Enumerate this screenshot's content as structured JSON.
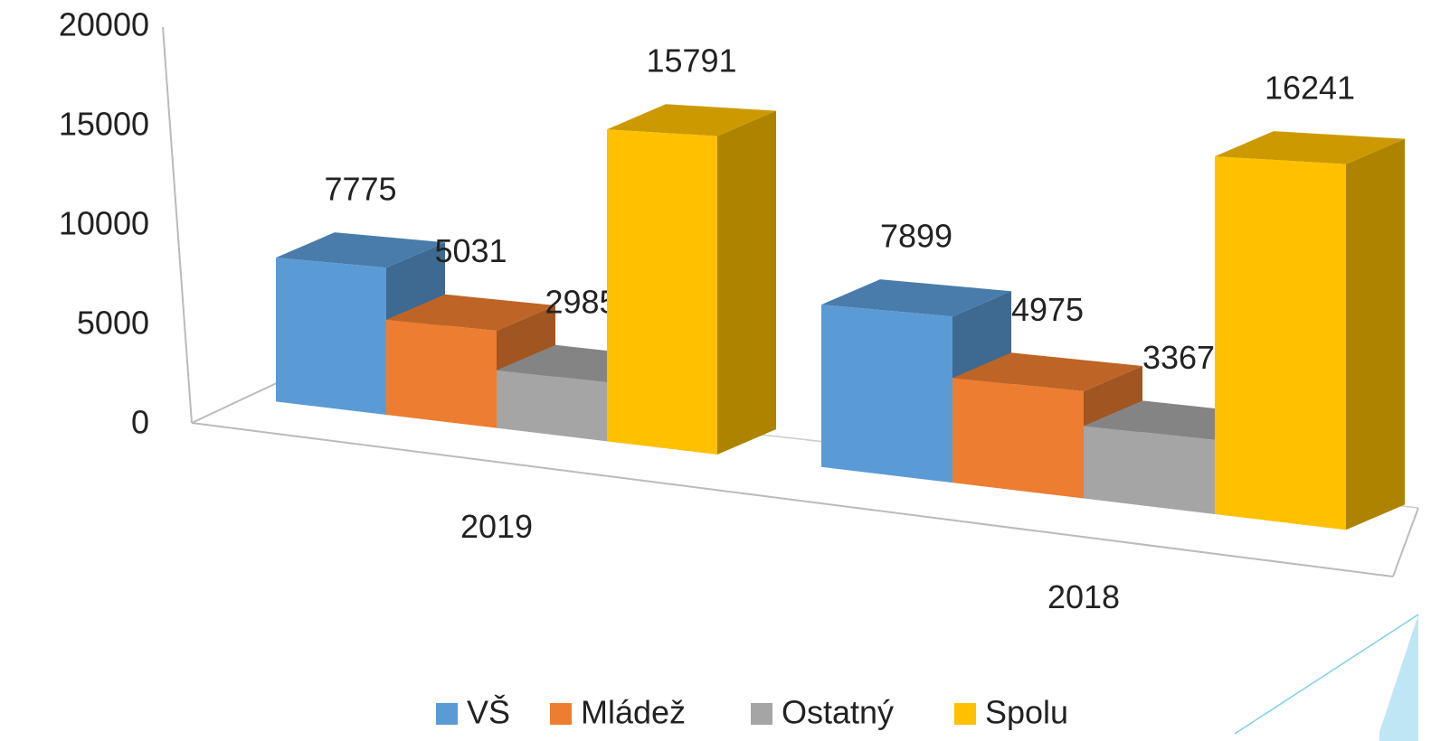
{
  "chart_data": {
    "type": "bar3d",
    "categories": [
      "2019",
      "2018"
    ],
    "series": [
      {
        "name": "VŠ",
        "color": "#5b9bd5",
        "values": [
          7775,
          7899
        ]
      },
      {
        "name": "Mládež",
        "color": "#ed7d31",
        "values": [
          5031,
          4975
        ]
      },
      {
        "name": "Ostatný",
        "color": "#a5a5a5",
        "values": [
          2985,
          3367
        ]
      },
      {
        "name": "Spolu",
        "color": "#ffc000",
        "values": [
          15791,
          16241
        ]
      }
    ],
    "ylim": [
      0,
      20000
    ],
    "yticks": [
      0,
      5000,
      10000,
      15000,
      20000
    ],
    "legend": "bottom"
  }
}
